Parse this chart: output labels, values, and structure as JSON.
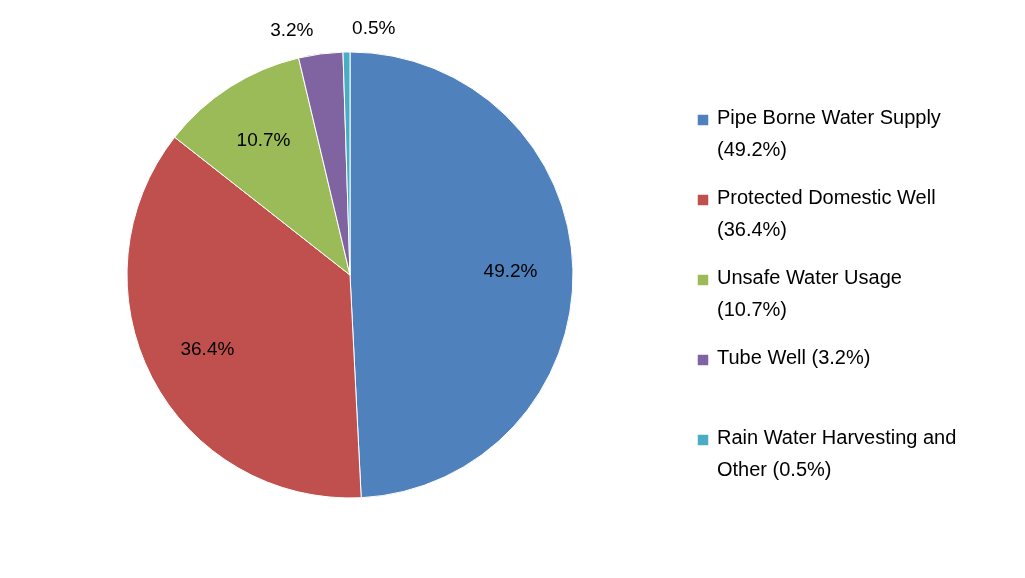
{
  "chart_data": {
    "type": "pie",
    "categories": [
      "Pipe Borne Water Supply (49.2%)",
      "Protected Domestic Well (36.4%)",
      "Unsafe Water Usage (10.7%)",
      "Tube Well (3.2%)",
      "Rain Water Harvesting and Other  (0.5%)"
    ],
    "values": [
      49.2,
      36.4,
      10.7,
      3.2,
      0.5
    ],
    "colors": [
      "#4f81bd",
      "#c0504d",
      "#9bbb59",
      "#8064a2",
      "#4bacc6"
    ],
    "value_labels": [
      "49.2%",
      "36.4%",
      "10.7%",
      "3.2%",
      "0.5%"
    ],
    "legend": "right"
  }
}
